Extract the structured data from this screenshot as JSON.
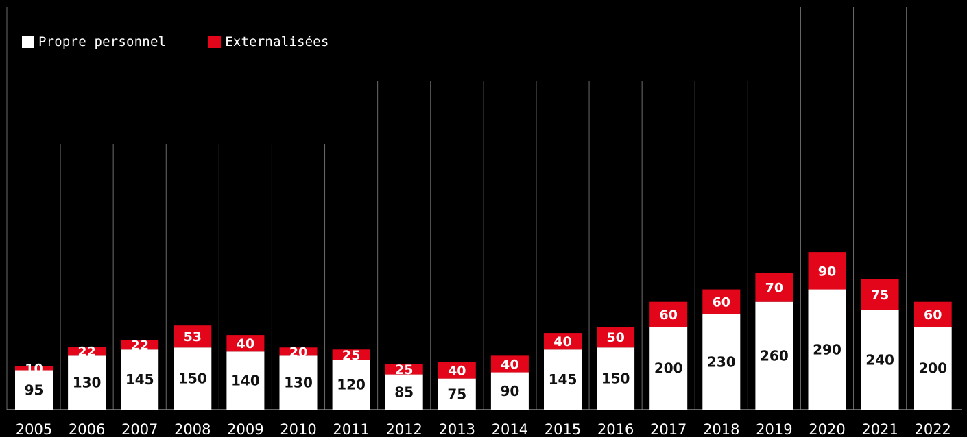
{
  "chart_data": {
    "type": "bar",
    "stacked": true,
    "categories": [
      "2005",
      "2006",
      "2007",
      "2008",
      "2009",
      "2010",
      "2011",
      "2012",
      "2013",
      "2014",
      "2015",
      "2016",
      "2017",
      "2018",
      "2019",
      "2020",
      "2021",
      "2022"
    ],
    "series": [
      {
        "name": "Propre personnel",
        "color": "#ffffff",
        "label_color": "#111111",
        "values": [
          95,
          130,
          145,
          150,
          140,
          130,
          120,
          85,
          75,
          90,
          145,
          150,
          200,
          230,
          260,
          290,
          240,
          200
        ]
      },
      {
        "name": "Externalisées",
        "color": "#e3061a",
        "label_color": "#ffffff",
        "values": [
          10,
          22,
          22,
          53,
          40,
          20,
          25,
          25,
          40,
          40,
          40,
          50,
          60,
          60,
          70,
          90,
          75,
          60
        ]
      }
    ],
    "legend_position": "top-left",
    "grid": false
  }
}
